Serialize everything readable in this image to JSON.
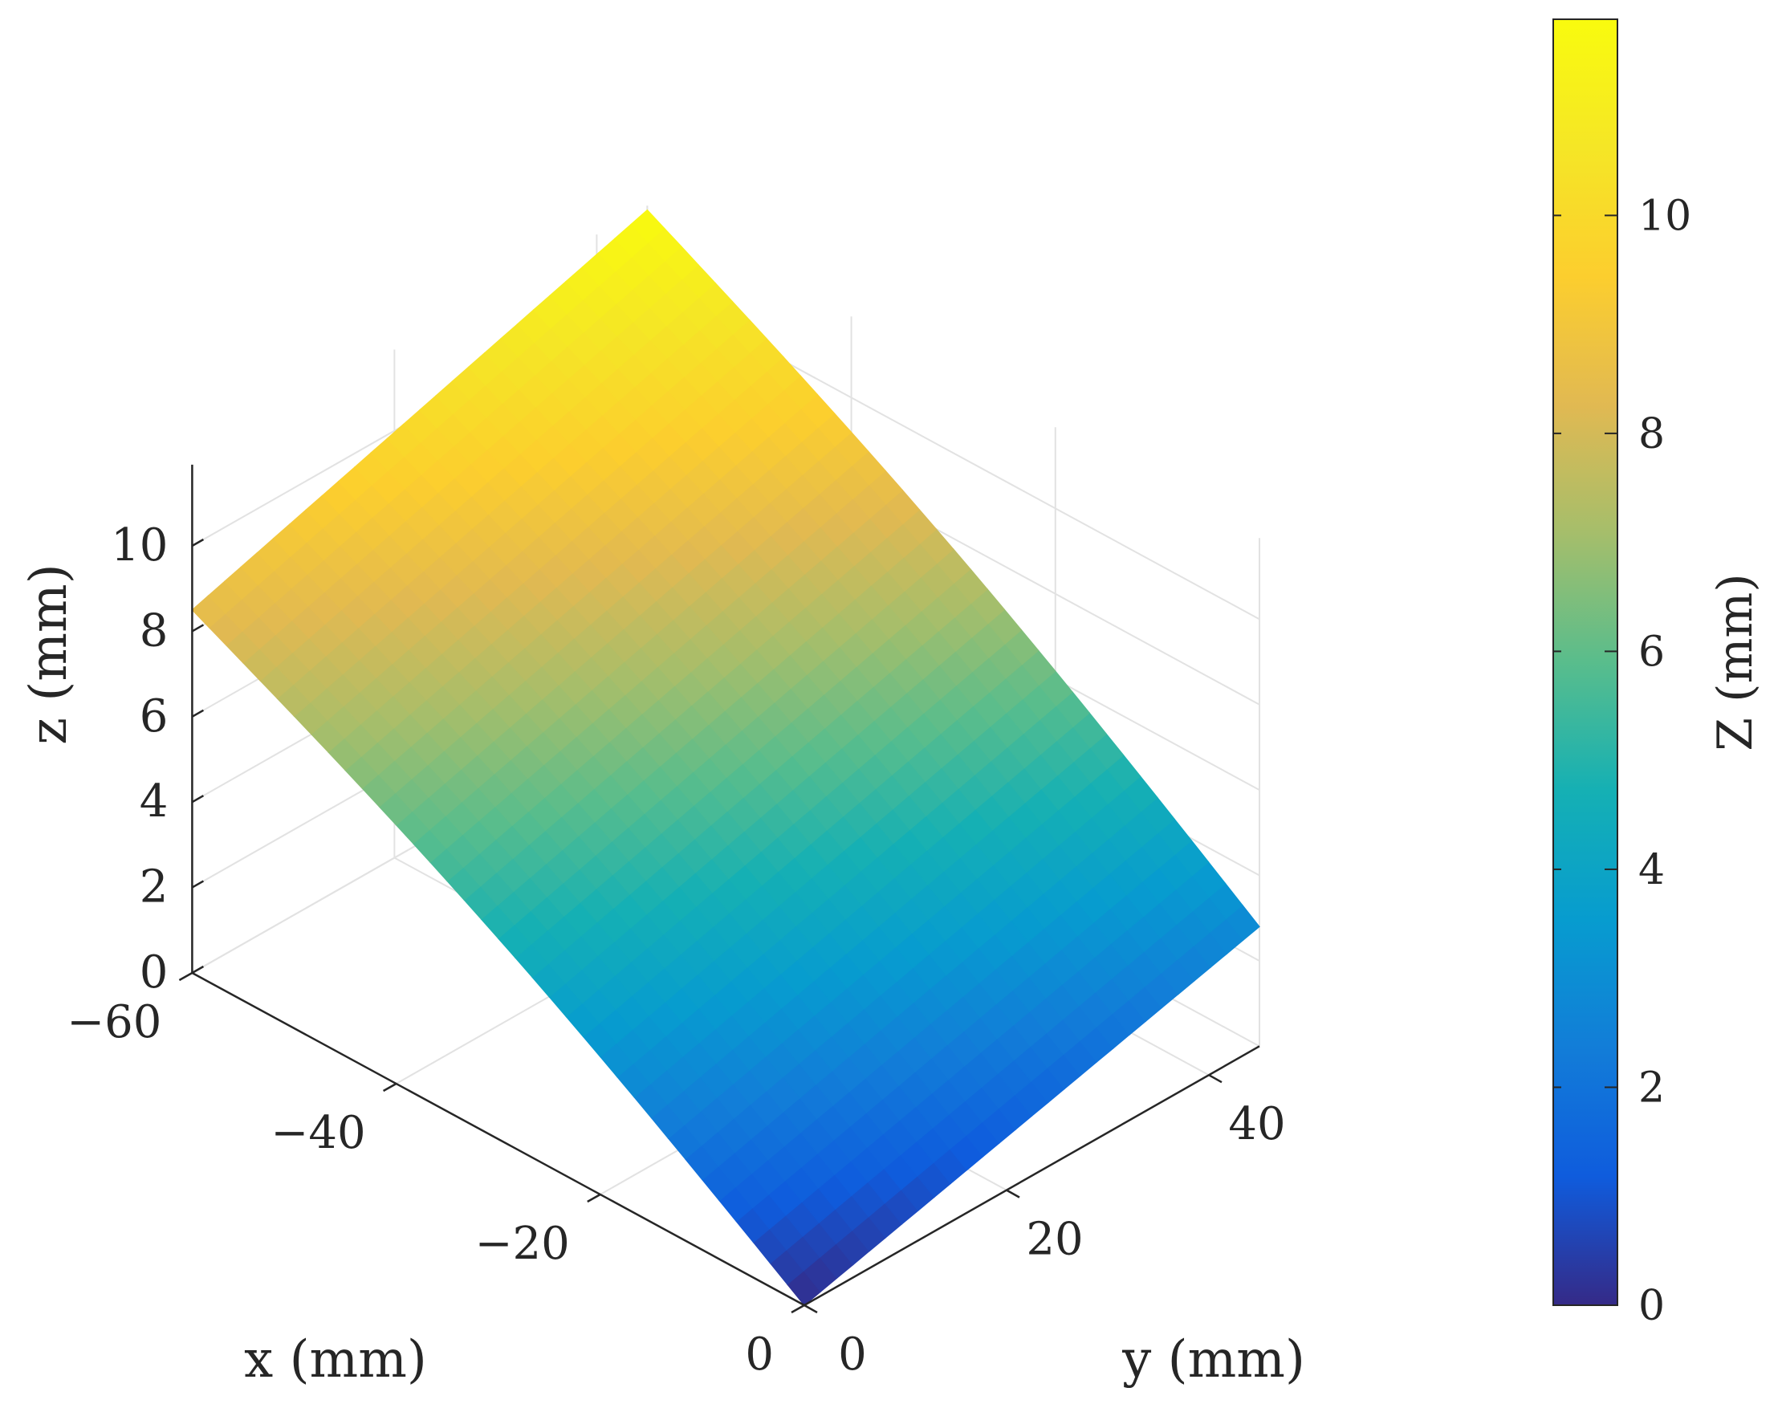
{
  "chart_data": {
    "type": "surface",
    "title": "",
    "xlabel": "x (mm)",
    "ylabel": "y (mm)",
    "zlabel": "z (mm)",
    "colorbar_label": "Z (mm)",
    "colormap": "parula",
    "xlim": [
      -60,
      0
    ],
    "ylim": [
      0,
      45
    ],
    "zlim": [
      0,
      11.9
    ],
    "grid": true,
    "x_ticks": [
      {
        "value": -60,
        "label": "−60"
      },
      {
        "value": -40,
        "label": "−40"
      },
      {
        "value": -20,
        "label": "−20"
      },
      {
        "value": 0,
        "label": "0"
      }
    ],
    "y_ticks": [
      {
        "value": 0,
        "label": "0"
      },
      {
        "value": 20,
        "label": "20"
      },
      {
        "value": 40,
        "label": "40"
      }
    ],
    "z_ticks": [
      {
        "value": 0,
        "label": "0"
      },
      {
        "value": 2,
        "label": "2"
      },
      {
        "value": 4,
        "label": "4"
      },
      {
        "value": 6,
        "label": "6"
      },
      {
        "value": 8,
        "label": "8"
      },
      {
        "value": 10,
        "label": "10"
      }
    ],
    "colorbar_ticks": [
      {
        "value": 0,
        "label": "0"
      },
      {
        "value": 2,
        "label": "2"
      },
      {
        "value": 4,
        "label": "4"
      },
      {
        "value": 6,
        "label": "6"
      },
      {
        "value": 8,
        "label": "8"
      },
      {
        "value": 10,
        "label": "10"
      }
    ],
    "colorbar_range": [
      0,
      11.8
    ],
    "surface_corners": [
      {
        "x": 0,
        "y": 0,
        "z": 0
      },
      {
        "x": -60,
        "y": 0,
        "z": 8.5
      },
      {
        "x": 0,
        "y": 45,
        "z": 2.8
      },
      {
        "x": -60,
        "y": 45,
        "z": 11.8
      }
    ]
  }
}
